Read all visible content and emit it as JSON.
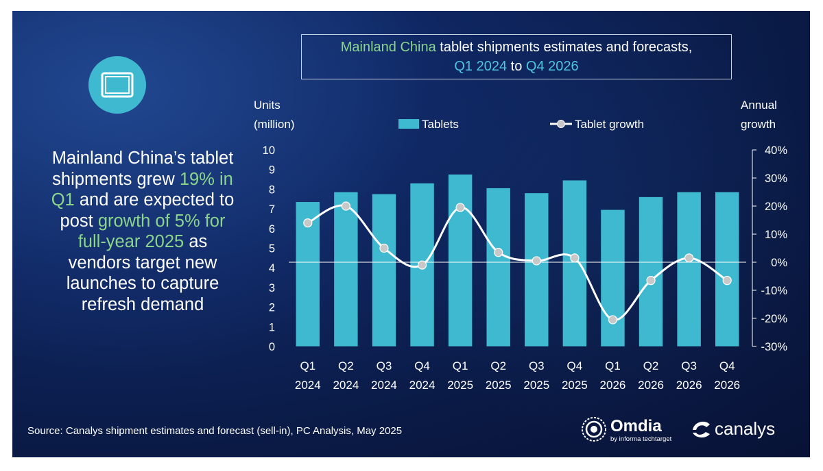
{
  "headline": {
    "line1": "Mainland China’s tablet",
    "line2_a": "shipments grew ",
    "line2_b": "19% in",
    "line3_a": "Q1",
    "line3_b": " and are expected to",
    "line4_a": "post ",
    "line4_b": "growth of 5% for",
    "line5_a": "full-year 2025",
    "line5_b": " as",
    "line6": "vendors target new",
    "line7": "launches to capture",
    "line8": "refresh demand"
  },
  "title": {
    "part1": "Mainland China",
    "part2": " tablet shipments estimates and forecasts,",
    "part3": "Q1 2024",
    "part4": " to ",
    "part5": "Q4 2026"
  },
  "source": "Source: Canalys shipment estimates and forecast (sell-in), PC Analysis, May 2025",
  "logos": {
    "omdia_name": "Omdia",
    "omdia_sub": "by informa techtarget",
    "canalys_name": "canalys"
  },
  "colors": {
    "bar": "#3fb9cf",
    "line": "#ffffff",
    "marker": "#c8c8c8",
    "highlight_green": "#8bd48b",
    "highlight_cyan": "#4fc4e0"
  },
  "icons": {
    "tablet": "tablet-icon",
    "omdia": "omdia-logo-icon",
    "canalys": "canalys-logo-icon"
  },
  "chart_data": {
    "type": "bar",
    "left_axis_label_line1": "Units",
    "left_axis_label_line2": "(million)",
    "right_axis_label_line1": "Annual",
    "right_axis_label_line2": "growth",
    "legend": [
      "Tablets",
      "Tablet growth"
    ],
    "legend_placement": "top-center",
    "categories": [
      [
        "Q1",
        "2024"
      ],
      [
        "Q2",
        "2024"
      ],
      [
        "Q3",
        "2024"
      ],
      [
        "Q4",
        "2024"
      ],
      [
        "Q1",
        "2025"
      ],
      [
        "Q2",
        "2025"
      ],
      [
        "Q3",
        "2025"
      ],
      [
        "Q4",
        "2025"
      ],
      [
        "Q1",
        "2026"
      ],
      [
        "Q2",
        "2026"
      ],
      [
        "Q3",
        "2026"
      ],
      [
        "Q4",
        "2026"
      ]
    ],
    "series": [
      {
        "name": "Tablets",
        "type": "bar",
        "axis": "left",
        "values": [
          7.35,
          7.85,
          7.75,
          8.3,
          8.75,
          8.05,
          7.8,
          8.45,
          6.95,
          7.6,
          7.85,
          7.85
        ]
      },
      {
        "name": "Tablet growth",
        "type": "line",
        "axis": "right",
        "values": [
          14,
          20,
          5,
          -1,
          19.5,
          3.5,
          0.5,
          1.5,
          -20.5,
          -6.5,
          1.5,
          -6.5
        ]
      }
    ],
    "left_ylim": [
      0,
      10
    ],
    "left_ticks": [
      "0",
      "1",
      "2",
      "3",
      "4",
      "5",
      "6",
      "7",
      "8",
      "9",
      "10"
    ],
    "right_ylim": [
      -30,
      40
    ],
    "right_ticks": [
      "-30%",
      "-20%",
      "-10%",
      "0%",
      "10%",
      "20%",
      "30%",
      "40%"
    ],
    "grid": false
  }
}
